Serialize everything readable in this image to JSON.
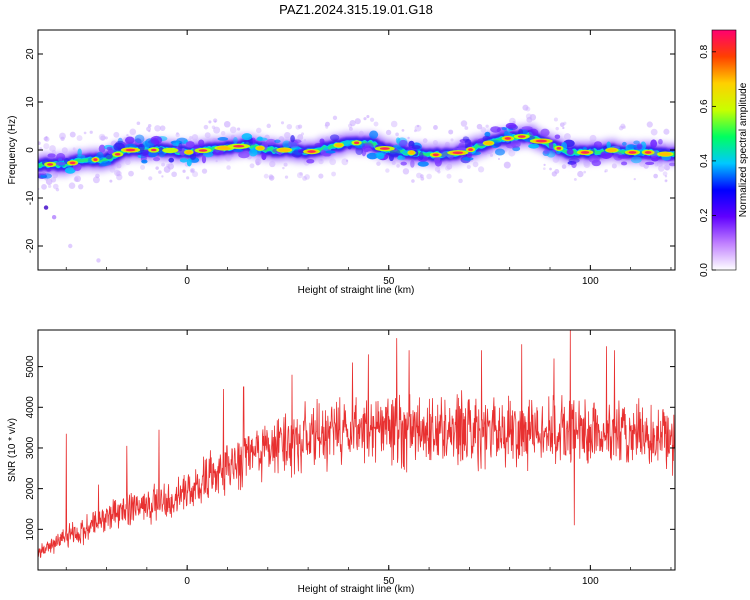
{
  "chart_data": [
    {
      "type": "heatmap",
      "title": "PAZ1.2024.315.19.01.G18",
      "xlabel": "Height of straight line (km)",
      "ylabel": "Frequency (Hz)",
      "xlim": [
        -37,
        121
      ],
      "ylim": [
        -25,
        25
      ],
      "x_ticks": [
        0,
        50,
        100
      ],
      "y_ticks": [
        -20,
        -10,
        0,
        10,
        20
      ],
      "colorbar": {
        "label": "Normalized spectral amplitude",
        "range": [
          0,
          0.88
        ],
        "ticks": [
          "0.0",
          "0.2",
          "0.4",
          "0.6",
          "0.8"
        ],
        "colormap": [
          "#ffffff",
          "#c080ff",
          "#6000ff",
          "#0000ff",
          "#00c8ff",
          "#00ff60",
          "#c8ff00",
          "#ffd000",
          "#ff4000",
          "#ff0070"
        ]
      },
      "ridge_frequency": {
        "x": [
          -35,
          -30,
          -25,
          -20,
          -15,
          -10,
          -5,
          0,
          5,
          10,
          15,
          20,
          25,
          30,
          35,
          40,
          45,
          50,
          55,
          60,
          65,
          70,
          75,
          80,
          85,
          90,
          95,
          100,
          105,
          110,
          115,
          120
        ],
        "y": [
          -3,
          -3,
          -2,
          -2,
          0,
          0,
          0,
          -0.5,
          0,
          0.5,
          1,
          0,
          0,
          -0.5,
          0.5,
          1.5,
          1.5,
          0,
          -0.5,
          -1,
          -1,
          0,
          1.5,
          2.5,
          3,
          1,
          -0.5,
          -0.5,
          0,
          -0.5,
          -0.5,
          -1
        ]
      }
    },
    {
      "type": "line",
      "xlabel": "Height of straight line (km)",
      "ylabel": "SNR (10 * v/v)",
      "xlim": [
        -37,
        121
      ],
      "ylim": [
        0,
        5900
      ],
      "x_ticks": [
        0,
        50,
        100
      ],
      "y_ticks": [
        1000,
        2000,
        3000,
        4000,
        5000
      ],
      "color": "#e83030",
      "trend": {
        "x": [
          -37,
          -30,
          -25,
          -20,
          -15,
          -10,
          -5,
          0,
          5,
          10,
          15,
          20,
          25,
          30,
          35,
          40,
          45,
          50,
          55,
          60,
          65,
          70,
          75,
          80,
          85,
          90,
          95,
          100,
          105,
          110,
          115,
          121
        ],
        "y": [
          400,
          800,
          1000,
          1300,
          1500,
          1550,
          1650,
          1900,
          2200,
          2500,
          2800,
          3000,
          3150,
          3250,
          3350,
          3400,
          3450,
          3450,
          3450,
          3450,
          3450,
          3450,
          3450,
          3450,
          3400,
          3400,
          3400,
          3350,
          3350,
          3300,
          3300,
          3250
        ]
      },
      "spikes": {
        "x": [
          -30,
          -22,
          -15,
          -7,
          9,
          14,
          26,
          41,
          45,
          52,
          55,
          73,
          83,
          91,
          95,
          96,
          104,
          106
        ],
        "y": [
          3350,
          2100,
          3050,
          3450,
          4450,
          4500,
          4800,
          5100,
          5300,
          5700,
          5400,
          5400,
          5550,
          5200,
          5900,
          1100,
          5500,
          5400
        ]
      }
    }
  ]
}
